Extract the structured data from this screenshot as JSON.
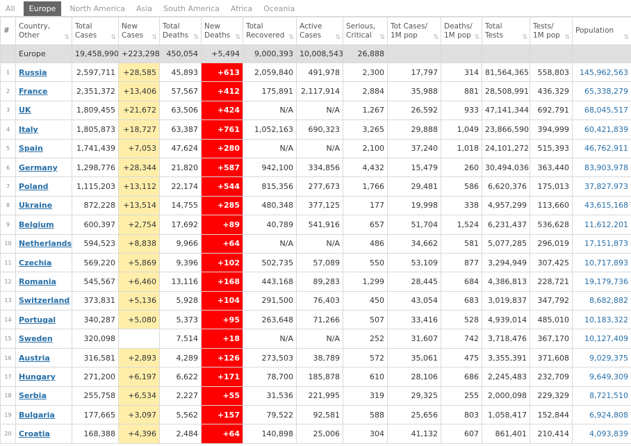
{
  "tabs": [
    "All",
    "Europe",
    "North America",
    "Asia",
    "South America",
    "Africa",
    "Oceania"
  ],
  "active_tab": 1,
  "columns": [
    {
      "label": "#",
      "l2": ""
    },
    {
      "label": "Country,",
      "l2": "Other"
    },
    {
      "label": "Total",
      "l2": "Cases"
    },
    {
      "label": "New",
      "l2": "Cases"
    },
    {
      "label": "Total",
      "l2": "Deaths"
    },
    {
      "label": "New",
      "l2": "Deaths"
    },
    {
      "label": "Total",
      "l2": "Recovered"
    },
    {
      "label": "Active",
      "l2": "Cases"
    },
    {
      "label": "Serious,",
      "l2": "Critical"
    },
    {
      "label": "Tot Cases/",
      "l2": "1M pop"
    },
    {
      "label": "Deaths/",
      "l2": "1M pop"
    },
    {
      "label": "Total",
      "l2": "Tests"
    },
    {
      "label": "Tests/",
      "l2": "1M pop"
    },
    {
      "label": "Population",
      "l2": ""
    }
  ],
  "total_row": {
    "name": "Europe",
    "total_cases": "19,458,990",
    "new_cases": "+223,298",
    "total_deaths": "450,054",
    "new_deaths": "+5,494",
    "recovered": "9,000,393",
    "active": "10,008,543",
    "critical": "26,888"
  },
  "rows": [
    {
      "n": "1",
      "c": "Russia",
      "tc": "2,597,711",
      "nc": "+28,585",
      "td": "45,893",
      "nd": "+613",
      "tr": "2,059,840",
      "ac": "491,978",
      "sc": "2,300",
      "cpm": "17,797",
      "dpm": "314",
      "tt": "81,564,365",
      "tpm": "558,803",
      "pop": "145,962,563"
    },
    {
      "n": "2",
      "c": "France",
      "tc": "2,351,372",
      "nc": "+13,406",
      "td": "57,567",
      "nd": "+412",
      "tr": "175,891",
      "ac": "2,117,914",
      "sc": "2,884",
      "cpm": "35,988",
      "dpm": "881",
      "tt": "28,508,991",
      "tpm": "436,329",
      "pop": "65,338,279"
    },
    {
      "n": "3",
      "c": "UK",
      "tc": "1,809,455",
      "nc": "+21,672",
      "td": "63,506",
      "nd": "+424",
      "tr": "N/A",
      "ac": "N/A",
      "sc": "1,267",
      "cpm": "26,592",
      "dpm": "933",
      "tt": "47,141,344",
      "tpm": "692,791",
      "pop": "68,045,517"
    },
    {
      "n": "4",
      "c": "Italy",
      "tc": "1,805,873",
      "nc": "+18,727",
      "td": "63,387",
      "nd": "+761",
      "tr": "1,052,163",
      "ac": "690,323",
      "sc": "3,265",
      "cpm": "29,888",
      "dpm": "1,049",
      "tt": "23,866,590",
      "tpm": "394,999",
      "pop": "60,421,839"
    },
    {
      "n": "5",
      "c": "Spain",
      "tc": "1,741,439",
      "nc": "+7,053",
      "td": "47,624",
      "nd": "+280",
      "tr": "N/A",
      "ac": "N/A",
      "sc": "2,100",
      "cpm": "37,240",
      "dpm": "1,018",
      "tt": "24,101,272",
      "tpm": "515,393",
      "pop": "46,762,911"
    },
    {
      "n": "6",
      "c": "Germany",
      "tc": "1,298,776",
      "nc": "+28,344",
      "td": "21,820",
      "nd": "+587",
      "tr": "942,100",
      "ac": "334,856",
      "sc": "4,432",
      "cpm": "15,479",
      "dpm": "260",
      "tt": "30,494,036",
      "tpm": "363,440",
      "pop": "83,903,978"
    },
    {
      "n": "7",
      "c": "Poland",
      "tc": "1,115,203",
      "nc": "+13,112",
      "td": "22,174",
      "nd": "+544",
      "tr": "815,356",
      "ac": "277,673",
      "sc": "1,766",
      "cpm": "29,481",
      "dpm": "586",
      "tt": "6,620,376",
      "tpm": "175,013",
      "pop": "37,827,973"
    },
    {
      "n": "8",
      "c": "Ukraine",
      "tc": "872,228",
      "nc": "+13,514",
      "td": "14,755",
      "nd": "+285",
      "tr": "480,348",
      "ac": "377,125",
      "sc": "177",
      "cpm": "19,998",
      "dpm": "338",
      "tt": "4,957,299",
      "tpm": "113,660",
      "pop": "43,615,168"
    },
    {
      "n": "9",
      "c": "Belgium",
      "tc": "600,397",
      "nc": "+2,754",
      "td": "17,692",
      "nd": "+89",
      "tr": "40,789",
      "ac": "541,916",
      "sc": "657",
      "cpm": "51,704",
      "dpm": "1,524",
      "tt": "6,231,437",
      "tpm": "536,628",
      "pop": "11,612,201"
    },
    {
      "n": "10",
      "c": "Netherlands",
      "tc": "594,523",
      "nc": "+8,838",
      "td": "9,966",
      "nd": "+64",
      "tr": "N/A",
      "ac": "N/A",
      "sc": "486",
      "cpm": "34,662",
      "dpm": "581",
      "tt": "5,077,285",
      "tpm": "296,019",
      "pop": "17,151,873"
    },
    {
      "n": "11",
      "c": "Czechia",
      "tc": "569,220",
      "nc": "+5,869",
      "td": "9,396",
      "nd": "+102",
      "tr": "502,735",
      "ac": "57,089",
      "sc": "550",
      "cpm": "53,109",
      "dpm": "877",
      "tt": "3,294,949",
      "tpm": "307,425",
      "pop": "10,717,893"
    },
    {
      "n": "12",
      "c": "Romania",
      "tc": "545,567",
      "nc": "+6,460",
      "td": "13,116",
      "nd": "+168",
      "tr": "443,168",
      "ac": "89,283",
      "sc": "1,299",
      "cpm": "28,445",
      "dpm": "684",
      "tt": "4,386,813",
      "tpm": "228,721",
      "pop": "19,179,736"
    },
    {
      "n": "13",
      "c": "Switzerland",
      "tc": "373,831",
      "nc": "+5,136",
      "td": "5,928",
      "nd": "+104",
      "tr": "291,500",
      "ac": "76,403",
      "sc": "450",
      "cpm": "43,054",
      "dpm": "683",
      "tt": "3,019,837",
      "tpm": "347,792",
      "pop": "8,682,882"
    },
    {
      "n": "14",
      "c": "Portugal",
      "tc": "340,287",
      "nc": "+5,080",
      "td": "5,373",
      "nd": "+95",
      "tr": "263,648",
      "ac": "71,266",
      "sc": "507",
      "cpm": "33,416",
      "dpm": "528",
      "tt": "4,939,014",
      "tpm": "485,010",
      "pop": "10,183,322"
    },
    {
      "n": "15",
      "c": "Sweden",
      "tc": "320,098",
      "nc": "",
      "td": "7,514",
      "nd": "+18",
      "tr": "N/A",
      "ac": "N/A",
      "sc": "252",
      "cpm": "31,607",
      "dpm": "742",
      "tt": "3,718,476",
      "tpm": "367,170",
      "pop": "10,127,409"
    },
    {
      "n": "16",
      "c": "Austria",
      "tc": "316,581",
      "nc": "+2,893",
      "td": "4,289",
      "nd": "+126",
      "tr": "273,503",
      "ac": "38,789",
      "sc": "572",
      "cpm": "35,061",
      "dpm": "475",
      "tt": "3,355,391",
      "tpm": "371,608",
      "pop": "9,029,375"
    },
    {
      "n": "17",
      "c": "Hungary",
      "tc": "271,200",
      "nc": "+6,197",
      "td": "6,622",
      "nd": "+171",
      "tr": "78,700",
      "ac": "185,878",
      "sc": "610",
      "cpm": "28,106",
      "dpm": "686",
      "tt": "2,245,483",
      "tpm": "232,709",
      "pop": "9,649,309"
    },
    {
      "n": "18",
      "c": "Serbia",
      "tc": "255,758",
      "nc": "+6,534",
      "td": "2,227",
      "nd": "+55",
      "tr": "31,536",
      "ac": "221,995",
      "sc": "319",
      "cpm": "29,325",
      "dpm": "255",
      "tt": "2,000,098",
      "tpm": "229,329",
      "pop": "8,721,510"
    },
    {
      "n": "19",
      "c": "Bulgaria",
      "tc": "177,665",
      "nc": "+3,097",
      "td": "5,562",
      "nd": "+157",
      "tr": "79,522",
      "ac": "92,581",
      "sc": "588",
      "cpm": "25,656",
      "dpm": "803",
      "tt": "1,058,417",
      "tpm": "152,844",
      "pop": "6,924,808"
    },
    {
      "n": "20",
      "c": "Croatia",
      "tc": "168,388",
      "nc": "+4,396",
      "td": "2,484",
      "nd": "+64",
      "tr": "140,898",
      "ac": "25,006",
      "sc": "304",
      "cpm": "41,132",
      "dpm": "607",
      "tt": "861,401",
      "tpm": "210,414",
      "pop": "4,093,839"
    }
  ]
}
